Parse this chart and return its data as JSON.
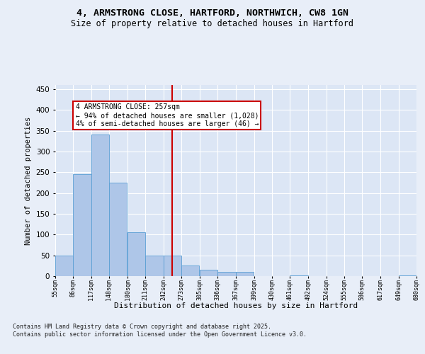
{
  "title": "4, ARMSTRONG CLOSE, HARTFORD, NORTHWICH, CW8 1GN",
  "subtitle": "Size of property relative to detached houses in Hartford",
  "xlabel": "Distribution of detached houses by size in Hartford",
  "ylabel": "Number of detached properties",
  "bin_edges": [
    55,
    86,
    117,
    148,
    180,
    211,
    242,
    273,
    305,
    336,
    367,
    399,
    430,
    461,
    492,
    524,
    555,
    586,
    617,
    649,
    680
  ],
  "bar_heights": [
    50,
    245,
    340,
    225,
    105,
    50,
    50,
    25,
    15,
    10,
    10,
    0,
    0,
    2,
    0,
    0,
    0,
    0,
    0,
    2
  ],
  "bar_color": "#aec6e8",
  "bar_edge_color": "#5a9fd4",
  "vline_x": 257,
  "vline_color": "#cc0000",
  "annotation_text": "4 ARMSTRONG CLOSE: 257sqm\n← 94% of detached houses are smaller (1,028)\n4% of semi-detached houses are larger (46) →",
  "annotation_box_color": "#cc0000",
  "annotation_text_color": "#000000",
  "ylim": [
    0,
    460
  ],
  "yticks": [
    0,
    50,
    100,
    150,
    200,
    250,
    300,
    350,
    400,
    450
  ],
  "background_color": "#e8eef8",
  "plot_bg_color": "#dce6f5",
  "footer_text": "Contains HM Land Registry data © Crown copyright and database right 2025.\nContains public sector information licensed under the Open Government Licence v3.0.",
  "tick_labels": [
    "55sqm",
    "86sqm",
    "117sqm",
    "148sqm",
    "180sqm",
    "211sqm",
    "242sqm",
    "273sqm",
    "305sqm",
    "336sqm",
    "367sqm",
    "399sqm",
    "430sqm",
    "461sqm",
    "492sqm",
    "524sqm",
    "555sqm",
    "586sqm",
    "617sqm",
    "649sqm",
    "680sqm"
  ]
}
